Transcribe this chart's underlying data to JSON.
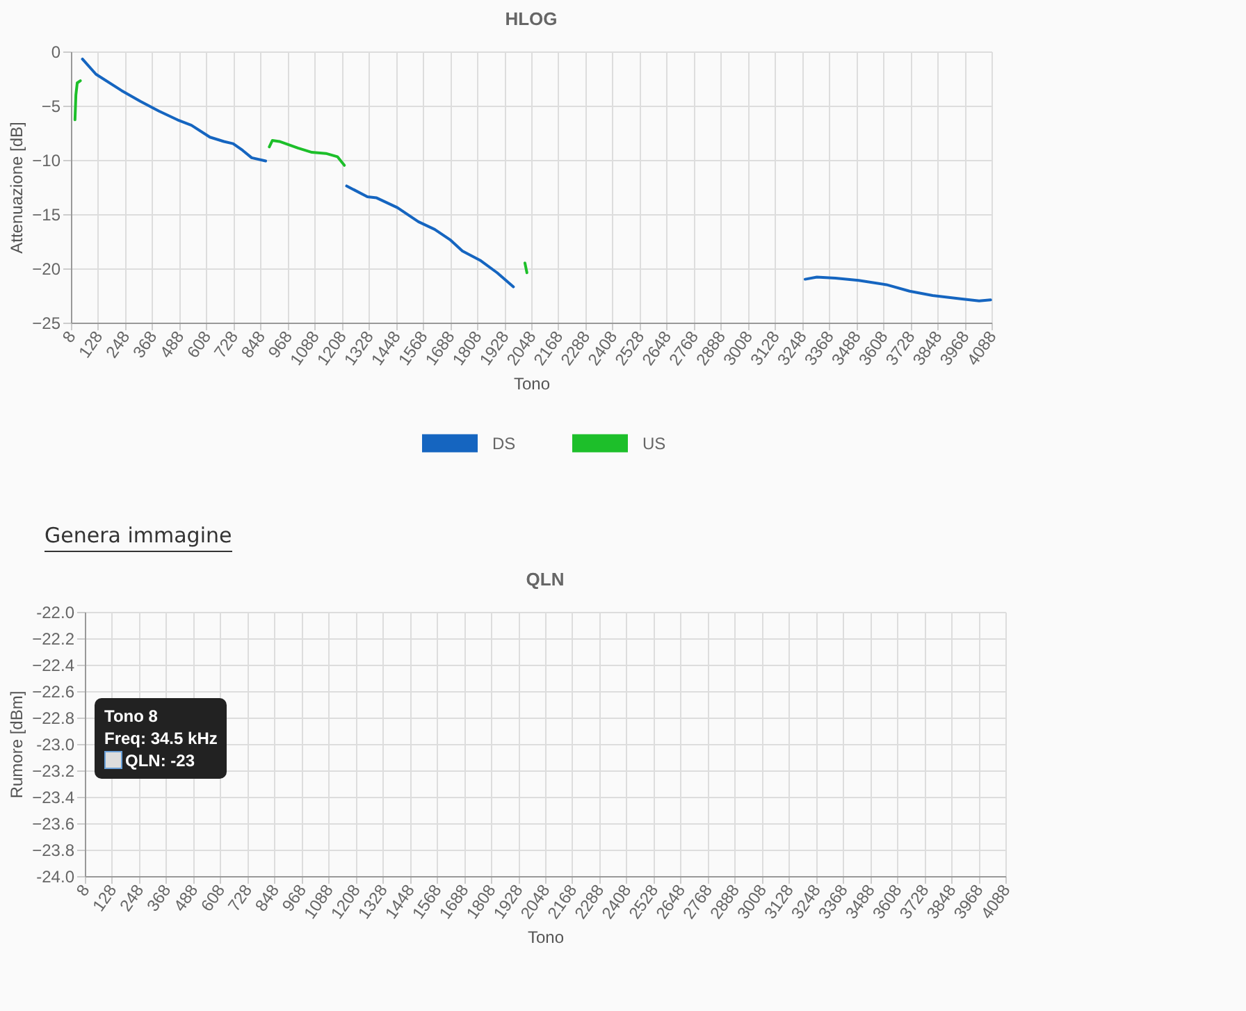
{
  "chart_data": [
    {
      "type": "line",
      "title": "HLOG",
      "xlabel": "Tono",
      "ylabel": "Attenuazione [dB]",
      "xlim": [
        8,
        4088
      ],
      "ylim": [
        -25,
        0
      ],
      "xticks": [
        8,
        128,
        248,
        368,
        488,
        608,
        728,
        848,
        968,
        1088,
        1208,
        1328,
        1448,
        1568,
        1688,
        1808,
        1928,
        2048,
        2168,
        2288,
        2408,
        2528,
        2648,
        2768,
        2888,
        3008,
        3128,
        3248,
        3368,
        3488,
        3608,
        3728,
        3848,
        3968,
        4088
      ],
      "yticks": [
        -25,
        -20,
        -15,
        -10,
        -5,
        0
      ],
      "grid": true,
      "legend": "bottom",
      "line_style": "solid",
      "marker": "none",
      "series": [
        {
          "name": "DS",
          "color": "#1565c0",
          "x": [
            59,
            119,
            232,
            316,
            398,
            480,
            542,
            624,
            686,
            727,
            768,
            809,
            871,
            null,
            1230,
            1322,
            1363,
            1455,
            1548,
            1620,
            1691,
            1743,
            1825,
            1897,
            1969,
            null,
            3262,
            3314,
            3396,
            3499,
            3622,
            3725,
            3827,
            3951,
            4033,
            4084
          ],
          "values": [
            -0.7,
            -2.1,
            -3.6,
            -4.6,
            -5.5,
            -6.3,
            -6.8,
            -7.9,
            -8.3,
            -8.5,
            -9.1,
            -9.8,
            -10.1,
            null,
            -12.4,
            -13.4,
            -13.5,
            -14.4,
            -15.7,
            -16.4,
            -17.4,
            -18.4,
            -19.3,
            -20.4,
            -21.7,
            null,
            -21.0,
            -20.8,
            -20.9,
            -21.1,
            -21.5,
            -22.1,
            -22.5,
            -22.8,
            -23.0,
            -22.9
          ]
        },
        {
          "name": "US",
          "color": "#1dbf2a",
          "x": [
            26,
            30,
            36,
            50,
            null,
            887,
            901,
            932,
            1014,
            1076,
            1138,
            1189,
            1220,
            null,
            2020,
            2029
          ],
          "values": [
            -6.3,
            -4.0,
            -2.9,
            -2.7,
            null,
            -8.8,
            -8.2,
            -8.3,
            -8.9,
            -9.3,
            -9.4,
            -9.7,
            -10.5,
            null,
            -19.5,
            -20.4
          ]
        }
      ],
      "annotations": [
        "Genera immagine"
      ]
    },
    {
      "type": "line",
      "title": "QLN",
      "xlabel": "Tono",
      "ylabel": "Rumore [dBm]",
      "xlim": [
        8,
        4088
      ],
      "ylim": [
        -24,
        -22
      ],
      "xticks": [
        8,
        128,
        248,
        368,
        488,
        608,
        728,
        848,
        968,
        1088,
        1208,
        1328,
        1448,
        1568,
        1688,
        1808,
        1928,
        2048,
        2168,
        2288,
        2408,
        2528,
        2648,
        2768,
        2888,
        3008,
        3128,
        3248,
        3368,
        3488,
        3608,
        3728,
        3848,
        3968,
        4088
      ],
      "yticks": [
        {
          "value": -24,
          "label": "-24.0"
        },
        -23.8,
        -23.6,
        -23.4,
        -23.2,
        {
          "value": -23,
          "label": "-23.0"
        },
        -22.8,
        -22.6,
        -22.4,
        -22.2,
        {
          "value": -22,
          "label": "-22.0"
        }
      ],
      "grid": true,
      "annotations": [
        "Tono 8",
        "Freq: 34.5 kHz",
        "QLN: -23"
      ]
    }
  ]
}
